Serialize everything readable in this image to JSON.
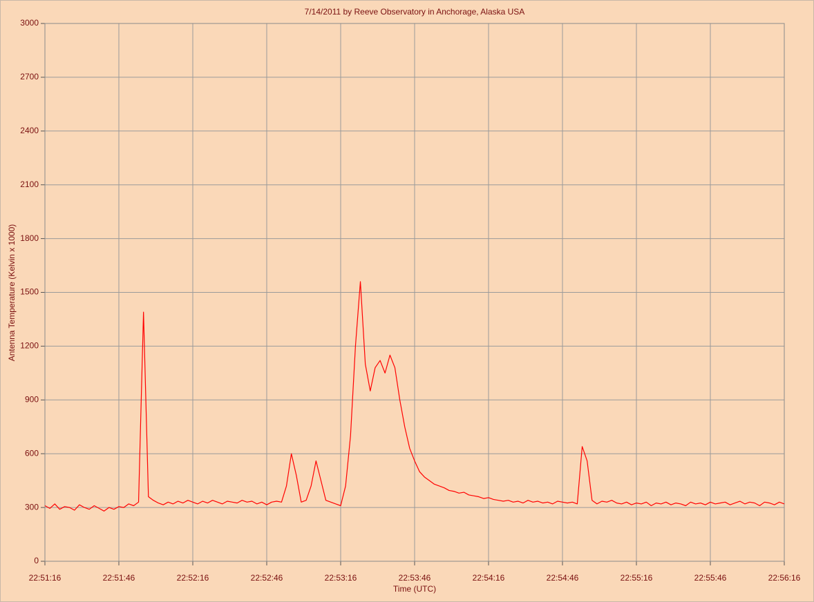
{
  "chart_data": {
    "type": "line",
    "title": "7/14/2011  by  Reeve Observatory  in  Anchorage, Alaska  USA",
    "x_label": "Time (UTC)",
    "y_label": "Antenna Temperature (Kelvin x 1000)",
    "color": "#ff0000",
    "grid": true,
    "xlim": [
      "22:51:16",
      "22:56:16"
    ],
    "xticks": [
      "22:51:16",
      "22:51:46",
      "22:52:16",
      "22:52:46",
      "22:53:16",
      "22:53:46",
      "22:54:16",
      "22:54:46",
      "22:55:16",
      "22:55:46",
      "22:56:16"
    ],
    "ylim": [
      0,
      3000
    ],
    "yticks": [
      0,
      300,
      600,
      900,
      1200,
      1500,
      1800,
      2100,
      2400,
      2700,
      3000
    ],
    "x": [
      "22:51:16",
      "22:51:18",
      "22:51:20",
      "22:51:22",
      "22:51:24",
      "22:51:26",
      "22:51:28",
      "22:51:30",
      "22:51:32",
      "22:51:34",
      "22:51:36",
      "22:51:38",
      "22:51:40",
      "22:51:42",
      "22:51:44",
      "22:51:46",
      "22:51:48",
      "22:51:50",
      "22:51:52",
      "22:51:54",
      "22:51:56",
      "22:51:58",
      "22:52:00",
      "22:52:02",
      "22:52:04",
      "22:52:06",
      "22:52:08",
      "22:52:10",
      "22:52:12",
      "22:52:14",
      "22:52:16",
      "22:52:18",
      "22:52:20",
      "22:52:22",
      "22:52:24",
      "22:52:26",
      "22:52:28",
      "22:52:30",
      "22:52:32",
      "22:52:34",
      "22:52:36",
      "22:52:38",
      "22:52:40",
      "22:52:42",
      "22:52:44",
      "22:52:46",
      "22:52:48",
      "22:52:50",
      "22:52:52",
      "22:52:54",
      "22:52:56",
      "22:52:58",
      "22:53:00",
      "22:53:02",
      "22:53:04",
      "22:53:06",
      "22:53:08",
      "22:53:10",
      "22:53:12",
      "22:53:14",
      "22:53:16",
      "22:53:18",
      "22:53:20",
      "22:53:22",
      "22:53:24",
      "22:53:26",
      "22:53:28",
      "22:53:30",
      "22:53:32",
      "22:53:34",
      "22:53:36",
      "22:53:38",
      "22:53:40",
      "22:53:42",
      "22:53:44",
      "22:53:46",
      "22:53:48",
      "22:53:50",
      "22:53:52",
      "22:53:54",
      "22:53:56",
      "22:53:58",
      "22:54:00",
      "22:54:02",
      "22:54:04",
      "22:54:06",
      "22:54:08",
      "22:54:10",
      "22:54:12",
      "22:54:14",
      "22:54:16",
      "22:54:18",
      "22:54:20",
      "22:54:22",
      "22:54:24",
      "22:54:26",
      "22:54:28",
      "22:54:30",
      "22:54:32",
      "22:54:34",
      "22:54:36",
      "22:54:38",
      "22:54:40",
      "22:54:42",
      "22:54:44",
      "22:54:46",
      "22:54:48",
      "22:54:50",
      "22:54:52",
      "22:54:54",
      "22:54:56",
      "22:54:58",
      "22:55:00",
      "22:55:02",
      "22:55:04",
      "22:55:06",
      "22:55:08",
      "22:55:10",
      "22:55:12",
      "22:55:14",
      "22:55:16",
      "22:55:18",
      "22:55:20",
      "22:55:22",
      "22:55:24",
      "22:55:26",
      "22:55:28",
      "22:55:30",
      "22:55:32",
      "22:55:34",
      "22:55:36",
      "22:55:38",
      "22:55:40",
      "22:55:42",
      "22:55:44",
      "22:55:46",
      "22:55:48",
      "22:55:50",
      "22:55:52",
      "22:55:54",
      "22:55:56",
      "22:55:58",
      "22:56:00",
      "22:56:02",
      "22:56:04",
      "22:56:06",
      "22:56:08",
      "22:56:10",
      "22:56:12",
      "22:56:14",
      "22:56:16"
    ],
    "values": [
      310,
      295,
      320,
      290,
      305,
      300,
      285,
      315,
      300,
      290,
      310,
      295,
      280,
      300,
      290,
      305,
      300,
      320,
      310,
      330,
      1390,
      360,
      340,
      325,
      315,
      330,
      320,
      335,
      325,
      340,
      330,
      320,
      335,
      325,
      340,
      330,
      320,
      335,
      330,
      325,
      340,
      330,
      335,
      320,
      330,
      315,
      330,
      335,
      330,
      420,
      600,
      480,
      330,
      340,
      420,
      560,
      450,
      340,
      330,
      320,
      310,
      420,
      700,
      1200,
      1560,
      1100,
      950,
      1080,
      1120,
      1050,
      1150,
      1080,
      900,
      750,
      630,
      560,
      500,
      470,
      450,
      430,
      420,
      410,
      395,
      390,
      380,
      385,
      370,
      365,
      360,
      350,
      355,
      345,
      340,
      335,
      340,
      330,
      335,
      325,
      340,
      330,
      335,
      325,
      330,
      320,
      335,
      330,
      325,
      330,
      320,
      640,
      560,
      340,
      320,
      335,
      330,
      340,
      325,
      320,
      330,
      315,
      325,
      320,
      330,
      310,
      325,
      320,
      330,
      315,
      325,
      320,
      310,
      330,
      320,
      325,
      315,
      330,
      320,
      325,
      330,
      315,
      325,
      335,
      320,
      330,
      325,
      310,
      330,
      325,
      315,
      330,
      320
    ]
  }
}
